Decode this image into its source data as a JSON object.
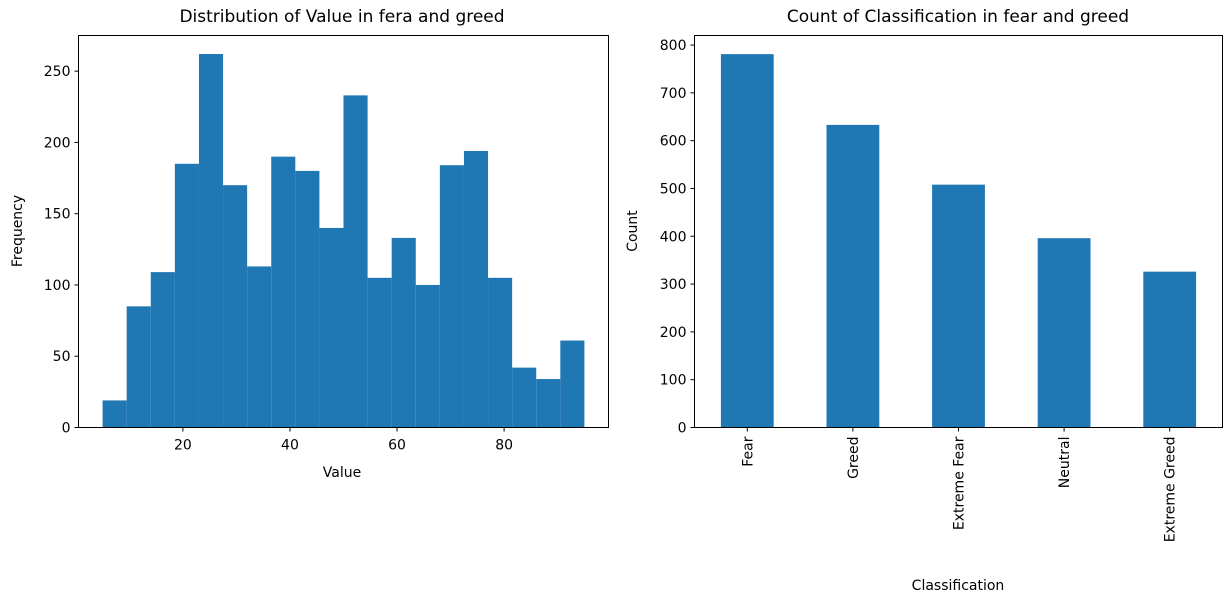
{
  "colors": {
    "bar": "#1f77b4",
    "axis": "#000000"
  },
  "chart_data": [
    {
      "type": "bar",
      "subtype": "histogram",
      "title": "Distribution of Value in fera and greed",
      "xlabel": "Value",
      "ylabel": "Frequency",
      "xlim": [
        0.5,
        99.5
      ],
      "ylim": [
        0,
        275
      ],
      "xticks": [
        20,
        40,
        60,
        80
      ],
      "yticks": [
        0,
        50,
        100,
        150,
        200,
        250
      ],
      "bin_edges": [
        5,
        9.5,
        14,
        18.5,
        23,
        27.5,
        32,
        36.5,
        41,
        45.5,
        50,
        54.5,
        59,
        63.5,
        68,
        72.5,
        77,
        81.5,
        86,
        90.5,
        95
      ],
      "values": [
        19,
        85,
        109,
        185,
        262,
        170,
        113,
        190,
        180,
        140,
        233,
        105,
        133,
        100,
        184,
        194,
        105,
        42,
        34,
        61
      ],
      "grid": false
    },
    {
      "type": "bar",
      "title": "Count of Classification in fear and greed",
      "xlabel": "Classification",
      "ylabel": "Count",
      "categories": [
        "Fear",
        "Greed",
        "Extreme Fear",
        "Neutral",
        "Extreme Greed"
      ],
      "values": [
        781,
        633,
        508,
        396,
        326
      ],
      "ylim": [
        0,
        820
      ],
      "yticks": [
        0,
        100,
        200,
        300,
        400,
        500,
        600,
        700,
        800
      ],
      "grid": false
    }
  ]
}
